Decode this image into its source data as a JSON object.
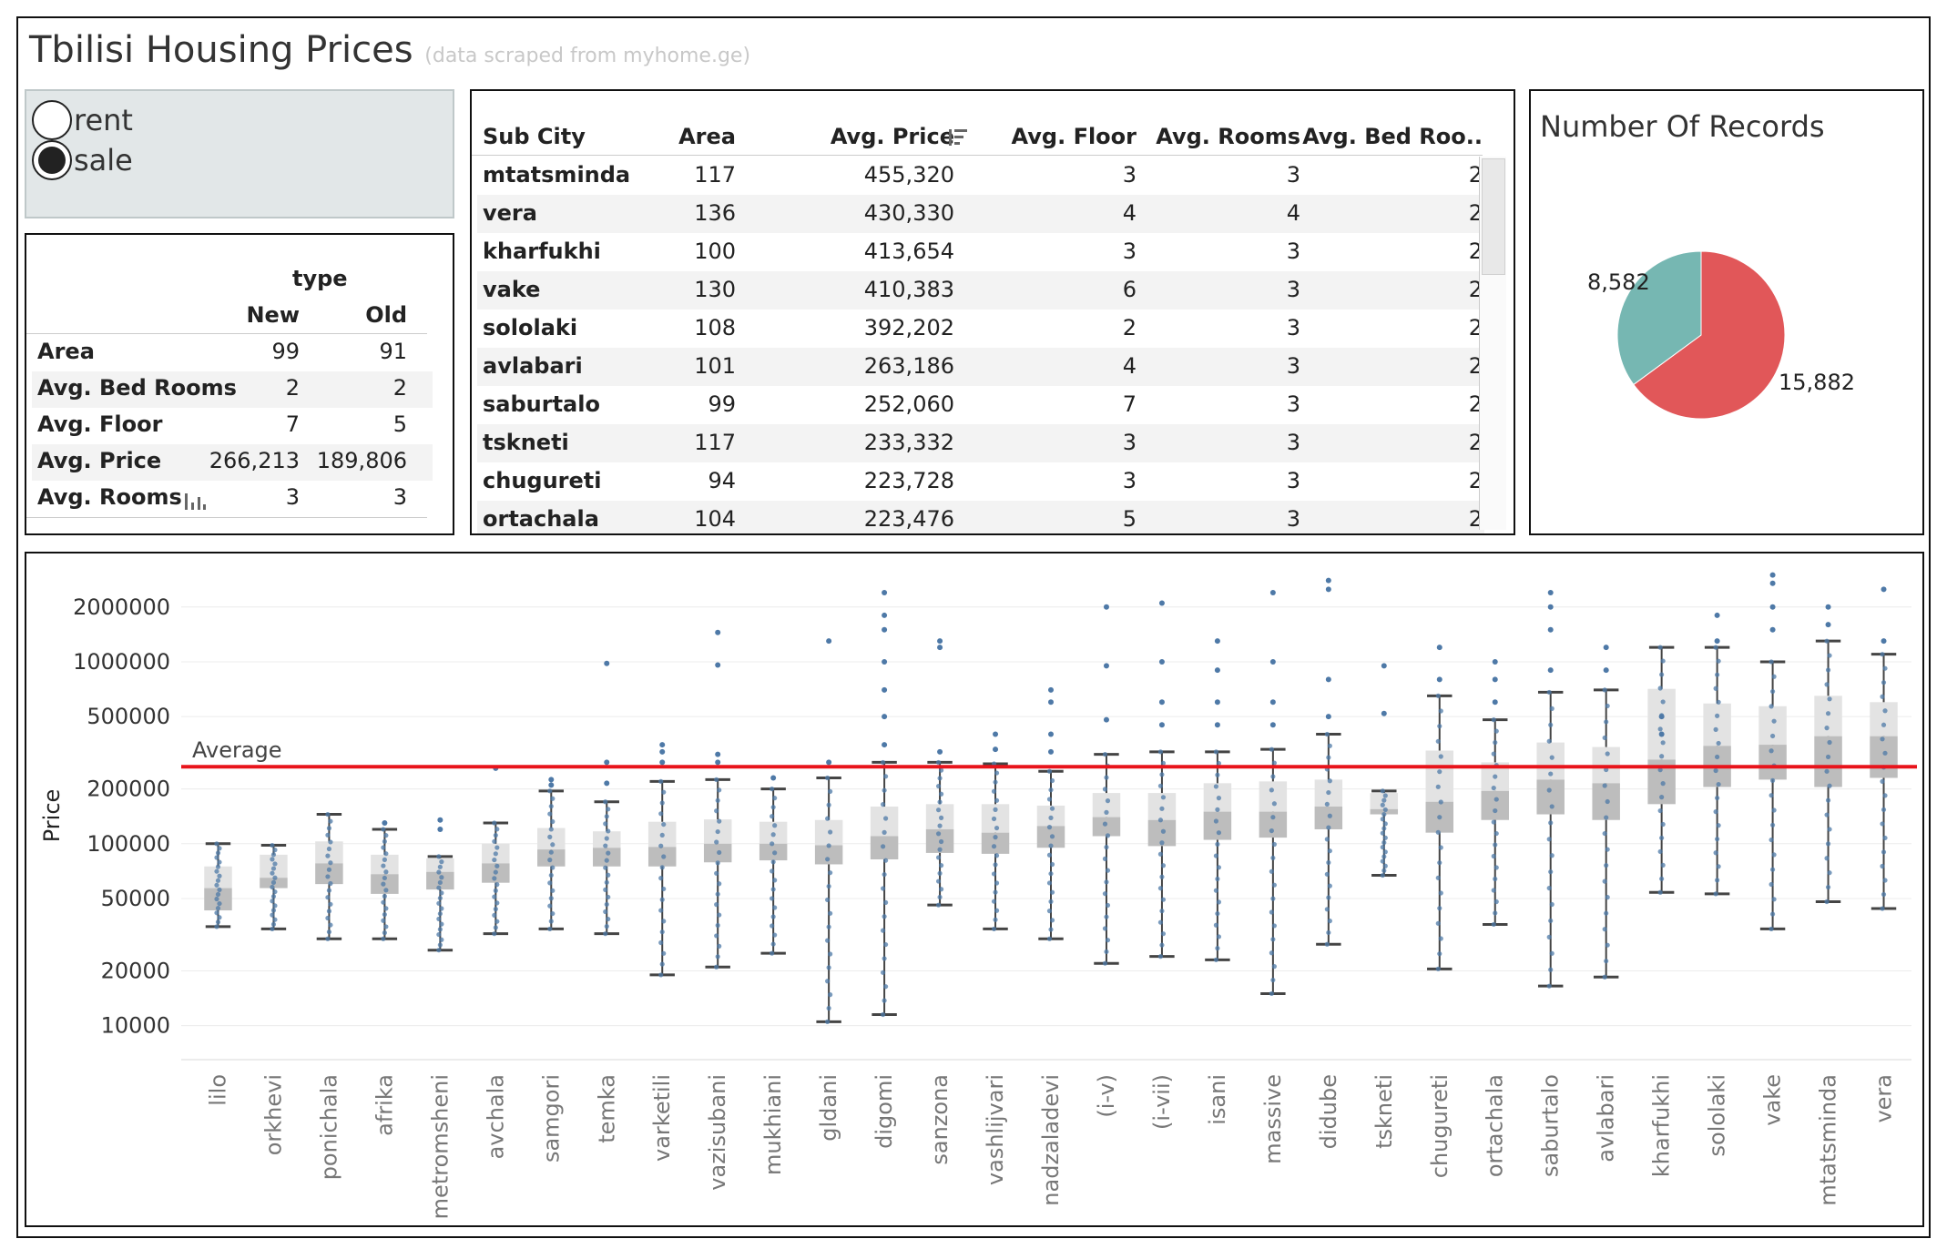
{
  "header": {
    "title": "Tbilisi Housing Prices",
    "subtitle": "(data scraped from myhome.ge)"
  },
  "filter": {
    "options": [
      {
        "label": "rent",
        "selected": false
      },
      {
        "label": "sale",
        "selected": true
      }
    ]
  },
  "type_table": {
    "group_header": "type",
    "columns": [
      "New",
      "Old"
    ],
    "rows": [
      {
        "label": "Area",
        "values": [
          "99",
          "91"
        ]
      },
      {
        "label": "Avg. Bed Rooms",
        "values": [
          "2",
          "2"
        ]
      },
      {
        "label": "Avg. Floor",
        "values": [
          "7",
          "5"
        ]
      },
      {
        "label": "Avg. Price",
        "values": [
          "266,213",
          "189,806"
        ]
      },
      {
        "label": "Avg. Rooms",
        "values": [
          "3",
          "3"
        ]
      }
    ]
  },
  "city_table": {
    "columns": [
      "Sub City",
      "Area",
      "Avg. Price",
      "Avg. Floor",
      "Avg. Rooms",
      "Avg. Bed Roo.."
    ],
    "rows": [
      [
        "mtatsminda",
        "117",
        "455,320",
        "3",
        "3",
        "2"
      ],
      [
        "vera",
        "136",
        "430,330",
        "4",
        "4",
        "2"
      ],
      [
        "kharfukhi",
        "100",
        "413,654",
        "3",
        "3",
        "2"
      ],
      [
        "vake",
        "130",
        "410,383",
        "6",
        "3",
        "2"
      ],
      [
        "sololaki",
        "108",
        "392,202",
        "2",
        "3",
        "2"
      ],
      [
        "avlabari",
        "101",
        "263,186",
        "4",
        "3",
        "2"
      ],
      [
        "saburtalo",
        "99",
        "252,060",
        "7",
        "3",
        "2"
      ],
      [
        "tskneti",
        "117",
        "233,332",
        "3",
        "3",
        "2"
      ],
      [
        "chugureti",
        "94",
        "223,728",
        "3",
        "3",
        "2"
      ],
      [
        "ortachala",
        "104",
        "223,476",
        "5",
        "3",
        "2"
      ]
    ]
  },
  "pie": {
    "title": "Number Of Records",
    "slices": [
      {
        "value": 15882,
        "label": "15,882",
        "color": "#e15759"
      },
      {
        "value": 8582,
        "label": "8,582",
        "color": "#76b7b2"
      }
    ]
  },
  "chart_data": {
    "type": "box",
    "ylabel": "Price",
    "yscale": "log",
    "yticks": [
      10000,
      20000,
      50000,
      100000,
      200000,
      500000,
      1000000,
      2000000
    ],
    "ytick_labels": [
      "10000",
      "20000",
      "50000",
      "100000",
      "200000",
      "500000",
      "1000000",
      "2000000"
    ],
    "reference_line": {
      "label": "Average",
      "value": 265000,
      "color": "#e8141b"
    },
    "categories": [
      "lilo",
      "orkhevi",
      "ponichala",
      "afrika",
      "metromsheni",
      "avchala",
      "samgori",
      "temka",
      "varketili",
      "vazisubani",
      "mukhiani",
      "gldani",
      "digomi",
      "sanzona",
      "vashlijvari",
      "nadzaladevi",
      "(i-v)",
      "(i-vii)",
      "isani",
      "massive",
      "didube",
      "tskneti",
      "chugureti",
      "ortachala",
      "saburtalo",
      "avlabari",
      "kharfukhi",
      "sololaki",
      "vake",
      "mtatsminda",
      "vera"
    ],
    "boxes": [
      {
        "min": 35000,
        "q1": 43000,
        "median": 57000,
        "q3": 75000,
        "max": 100000,
        "outliers": []
      },
      {
        "min": 34000,
        "q1": 57000,
        "median": 65000,
        "q3": 87000,
        "max": 98000,
        "outliers": []
      },
      {
        "min": 30000,
        "q1": 60000,
        "median": 78000,
        "q3": 103000,
        "max": 145000,
        "outliers": []
      },
      {
        "min": 30000,
        "q1": 53000,
        "median": 68000,
        "q3": 87000,
        "max": 120000,
        "outliers": [
          130000
        ]
      },
      {
        "min": 26000,
        "q1": 56000,
        "median": 70000,
        "q3": 83000,
        "max": 85000,
        "outliers": [
          120000,
          135000
        ]
      },
      {
        "min": 32000,
        "q1": 61000,
        "median": 78000,
        "q3": 100000,
        "max": 130000,
        "outliers": [
          260000
        ]
      },
      {
        "min": 34000,
        "q1": 75000,
        "median": 93000,
        "q3": 122000,
        "max": 195000,
        "outliers": [
          210000,
          225000
        ]
      },
      {
        "min": 32000,
        "q1": 75000,
        "median": 95000,
        "q3": 117000,
        "max": 170000,
        "outliers": [
          215000,
          280000,
          980000
        ]
      },
      {
        "min": 19000,
        "q1": 75000,
        "median": 96000,
        "q3": 132000,
        "max": 220000,
        "outliers": [
          280000,
          320000,
          350000
        ]
      },
      {
        "min": 21000,
        "q1": 79000,
        "median": 100000,
        "q3": 136000,
        "max": 225000,
        "outliers": [
          280000,
          310000,
          960000,
          1450000
        ]
      },
      {
        "min": 25000,
        "q1": 81000,
        "median": 100000,
        "q3": 132000,
        "max": 200000,
        "outliers": [
          230000
        ]
      },
      {
        "min": 10500,
        "q1": 77000,
        "median": 98000,
        "q3": 135000,
        "max": 230000,
        "outliers": [
          280000,
          1300000
        ]
      },
      {
        "min": 11500,
        "q1": 82000,
        "median": 110000,
        "q3": 160000,
        "max": 280000,
        "outliers": [
          350000,
          500000,
          700000,
          1000000,
          1500000,
          1800000,
          2400000
        ]
      },
      {
        "min": 46000,
        "q1": 89000,
        "median": 120000,
        "q3": 165000,
        "max": 280000,
        "outliers": [
          320000,
          1200000,
          1300000
        ]
      },
      {
        "min": 34000,
        "q1": 88000,
        "median": 115000,
        "q3": 165000,
        "max": 275000,
        "outliers": [
          330000,
          400000
        ]
      },
      {
        "min": 30000,
        "q1": 95000,
        "median": 125000,
        "q3": 162000,
        "max": 250000,
        "outliers": [
          320000,
          400000,
          600000,
          700000
        ]
      },
      {
        "min": 22000,
        "q1": 110000,
        "median": 140000,
        "q3": 190000,
        "max": 310000,
        "outliers": [
          480000,
          950000,
          2000000
        ]
      },
      {
        "min": 24000,
        "q1": 97000,
        "median": 135000,
        "q3": 190000,
        "max": 320000,
        "outliers": [
          450000,
          600000,
          1000000,
          2100000
        ]
      },
      {
        "min": 23000,
        "q1": 105000,
        "median": 150000,
        "q3": 215000,
        "max": 320000,
        "outliers": [
          450000,
          600000,
          900000,
          1300000
        ]
      },
      {
        "min": 15000,
        "q1": 108000,
        "median": 150000,
        "q3": 220000,
        "max": 330000,
        "outliers": [
          450000,
          600000,
          1000000,
          2400000
        ]
      },
      {
        "min": 28000,
        "q1": 120000,
        "median": 160000,
        "q3": 225000,
        "max": 400000,
        "outliers": [
          500000,
          800000,
          2500000,
          2800000
        ]
      },
      {
        "min": 67000,
        "q1": 145000,
        "median": 155000,
        "q3": 190000,
        "max": 195000,
        "outliers": [
          520000,
          950000
        ]
      },
      {
        "min": 20500,
        "q1": 115000,
        "median": 170000,
        "q3": 325000,
        "max": 650000,
        "outliers": [
          800000,
          1200000
        ]
      },
      {
        "min": 36000,
        "q1": 135000,
        "median": 195000,
        "q3": 280000,
        "max": 480000,
        "outliers": [
          600000,
          800000,
          1000000
        ]
      },
      {
        "min": 16500,
        "q1": 145000,
        "median": 225000,
        "q3": 360000,
        "max": 680000,
        "outliers": [
          900000,
          1500000,
          2000000,
          2400000
        ]
      },
      {
        "min": 18500,
        "q1": 135000,
        "median": 215000,
        "q3": 340000,
        "max": 700000,
        "outliers": [
          900000,
          1200000
        ]
      },
      {
        "min": 54000,
        "q1": 165000,
        "median": 290000,
        "q3": 710000,
        "max": 1200000,
        "outliers": [
          400000,
          500000
        ]
      },
      {
        "min": 53000,
        "q1": 205000,
        "median": 345000,
        "q3": 590000,
        "max": 1200000,
        "outliers": [
          1300000,
          1800000
        ]
      },
      {
        "min": 34000,
        "q1": 225000,
        "median": 350000,
        "q3": 570000,
        "max": 1000000,
        "outliers": [
          1500000,
          2000000,
          2700000,
          3000000
        ]
      },
      {
        "min": 48000,
        "q1": 205000,
        "median": 390000,
        "q3": 650000,
        "max": 1300000,
        "outliers": [
          1600000,
          2000000
        ]
      },
      {
        "min": 44000,
        "q1": 230000,
        "median": 390000,
        "q3": 600000,
        "max": 1100000,
        "outliers": [
          1300000,
          2500000
        ]
      }
    ]
  },
  "colors": {
    "dot": "#4e79a7",
    "box_light": "#e3e3e3",
    "box_dark": "#bdbdbd",
    "whisker": "#444444"
  }
}
